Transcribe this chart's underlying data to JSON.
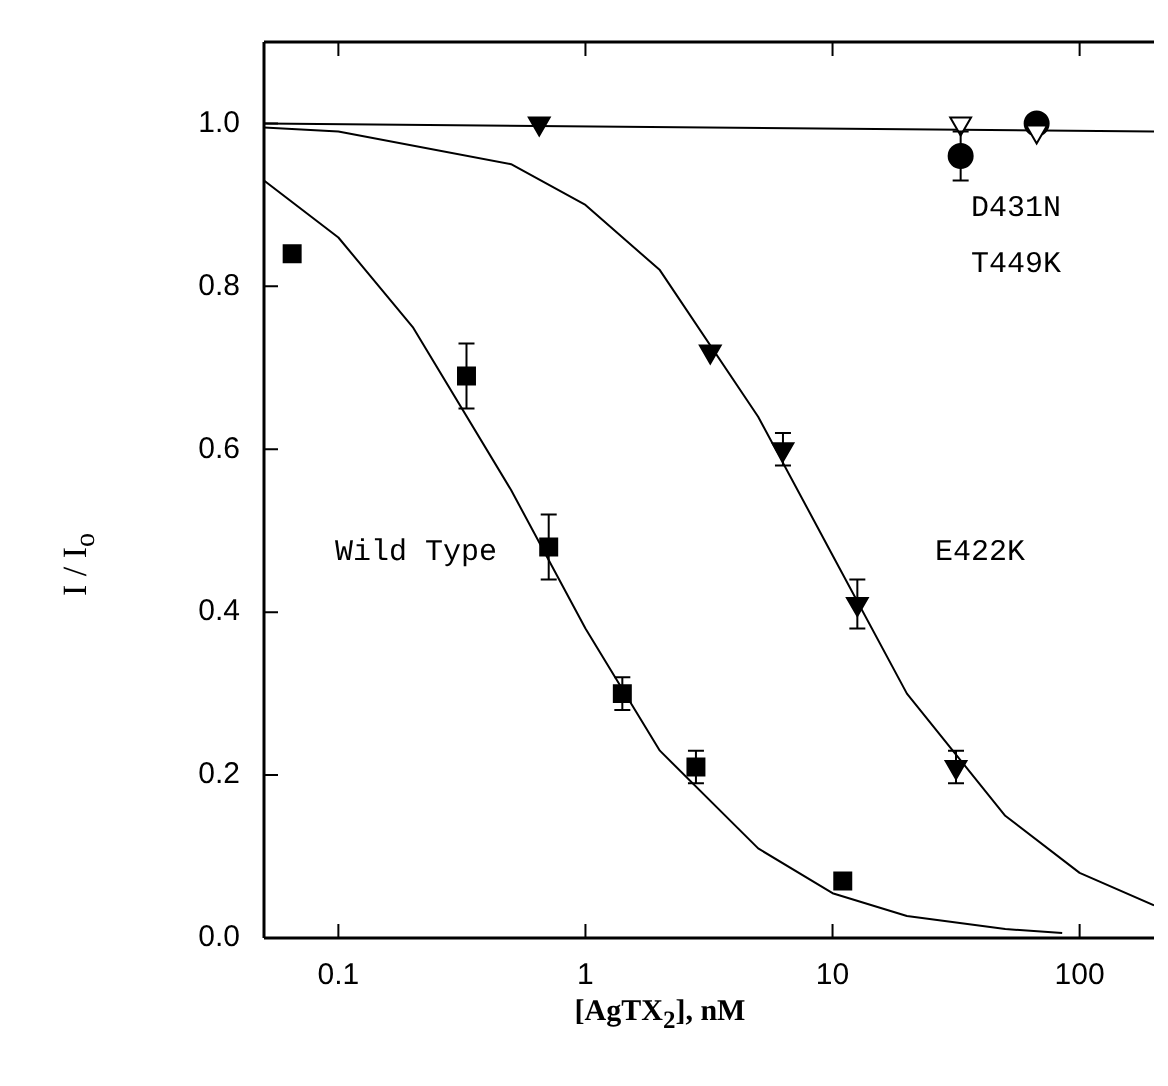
{
  "chart_data": {
    "type": "scatter",
    "xlabel": "[AgTX$_{2}$], nM",
    "ylabel": "I / I$_{o}$",
    "log": "x",
    "xlim": [
      0.05,
      200
    ],
    "xticks": [
      0.1,
      1,
      10,
      100
    ],
    "ylim": [
      0,
      1.1
    ],
    "yticks": [
      {
        "value": 0,
        "label": "0.0"
      },
      {
        "value": 0.2,
        "label": "0.2"
      },
      {
        "value": 0.4,
        "label": "0.4"
      },
      {
        "value": 0.6,
        "label": "0.6"
      },
      {
        "value": 0.8,
        "label": "0.8"
      },
      {
        "value": 1,
        "label": "1.0"
      }
    ],
    "grid": false,
    "legend": false,
    "series": [
      {
        "type": "line",
        "marker": "none",
        "color": "#000000",
        "x": [
          0.05,
          0.1,
          0.2,
          0.5,
          1,
          2,
          5,
          10,
          20,
          50,
          85
        ],
        "values": [
          0.93,
          0.86,
          0.75,
          0.55,
          0.38,
          0.23,
          0.11,
          0.055,
          0.027,
          0.011,
          0.006
        ]
      },
      {
        "type": "line",
        "marker": "none",
        "color": "#000000",
        "x": [
          0.05,
          0.1,
          0.5,
          1,
          2,
          5,
          10,
          20,
          50,
          100,
          200
        ],
        "values": [
          0.995,
          0.99,
          0.95,
          0.9,
          0.82,
          0.64,
          0.47,
          0.3,
          0.15,
          0.08,
          0.04
        ]
      },
      {
        "type": "line",
        "marker": "none",
        "color": "#000000",
        "x": [
          0.05,
          200
        ],
        "values": [
          1.0,
          0.99
        ]
      },
      {
        "marker": "square",
        "color": "#000000",
        "x": [
          0.065,
          0.33,
          0.71,
          1.41,
          2.8,
          11
        ],
        "values": [
          0.84,
          0.69,
          0.48,
          0.3,
          0.21,
          0.07
        ],
        "errors": [
          null,
          0.04,
          0.04,
          0.02,
          0.02,
          null
        ]
      },
      {
        "marker": "triangle-down",
        "color": "#000000",
        "x": [
          0.65,
          3.2,
          6.3,
          12.6,
          31.6
        ],
        "values": [
          1.0,
          0.72,
          0.6,
          0.41,
          0.21
        ],
        "errors": [
          null,
          null,
          0.02,
          0.03,
          0.02
        ]
      },
      {
        "marker": "triangle-down",
        "color": "#ffffff",
        "x": [
          33,
          67
        ],
        "values": [
          1.0,
          0.99
        ]
      },
      {
        "marker": "circle",
        "color": "#000000",
        "x": [
          33,
          67
        ],
        "values": [
          0.96,
          1.0
        ],
        "errors": [
          0.03,
          null
        ]
      }
    ],
    "annotations": [
      "Wild Type",
      "E422K",
      "D431N",
      "T449K"
    ]
  }
}
